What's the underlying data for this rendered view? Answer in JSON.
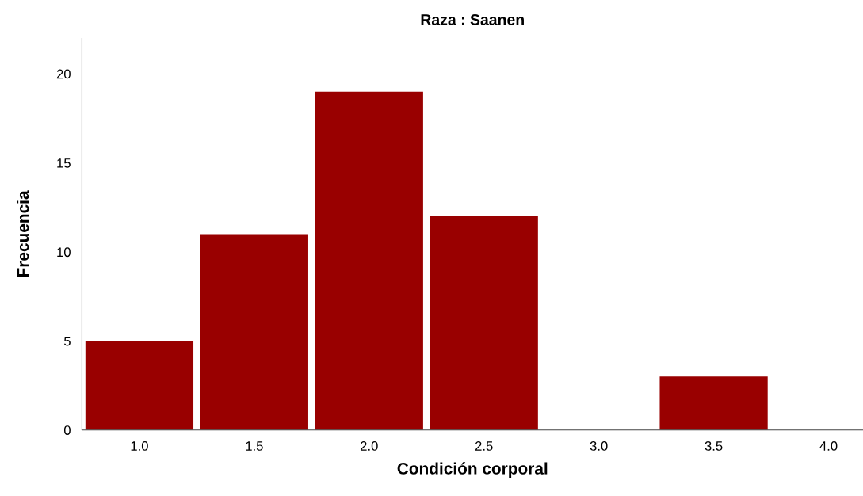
{
  "chart_data": {
    "type": "histogram",
    "title": "Raza : Saanen",
    "xlabel": "Condición corporal",
    "ylabel": "Frecuencia",
    "bins": [
      0.75,
      1.25,
      1.75,
      2.25,
      2.75,
      3.25,
      3.75
    ],
    "values": [
      5,
      11,
      19,
      12,
      0,
      3
    ],
    "color": "#990000",
    "xlim": [
      0.75,
      4.15
    ],
    "xticks": [
      {
        "value": 1.0,
        "label": "1.0"
      },
      {
        "value": 1.5,
        "label": "1.5"
      },
      {
        "value": 2.0,
        "label": "2.0"
      },
      {
        "value": 2.5,
        "label": "2.5"
      },
      {
        "value": 3.0,
        "label": "3.0"
      },
      {
        "value": 3.5,
        "label": "3.5"
      },
      {
        "value": 4.0,
        "label": "4.0"
      }
    ],
    "ylim": [
      0,
      22
    ],
    "yticks": [
      0,
      5,
      10,
      15,
      20
    ],
    "grid": false,
    "legend": false
  }
}
